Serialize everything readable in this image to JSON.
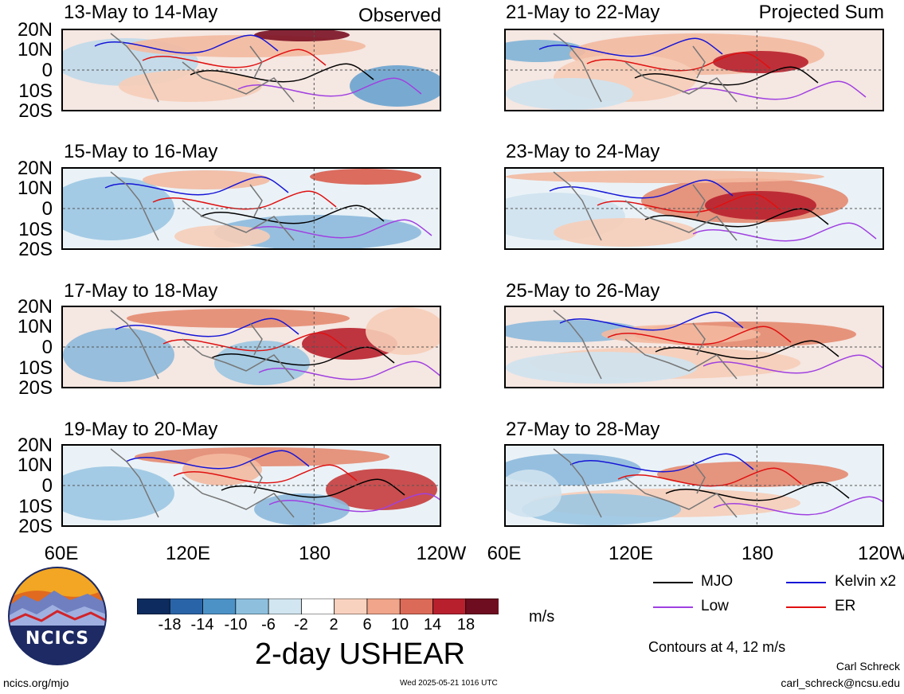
{
  "panels_left": [
    {
      "title": "13-May to 14-May",
      "tag": "Observed"
    },
    {
      "title": "15-May to 16-May",
      "tag": ""
    },
    {
      "title": "17-May to 18-May",
      "tag": ""
    },
    {
      "title": "19-May to 20-May",
      "tag": ""
    }
  ],
  "panels_right": [
    {
      "title": "21-May to 22-May",
      "tag": "Projected Sum"
    },
    {
      "title": "23-May to 24-May",
      "tag": ""
    },
    {
      "title": "25-May to 26-May",
      "tag": ""
    },
    {
      "title": "27-May to 28-May",
      "tag": ""
    }
  ],
  "lat_labels": [
    "20N",
    "10N",
    "0",
    "10S",
    "20S"
  ],
  "lon_labels": [
    "60E",
    "120E",
    "180",
    "120W"
  ],
  "colorbar": {
    "ticks": [
      "-18",
      "-14",
      "-10",
      "-6",
      "-2",
      "2",
      "6",
      "10",
      "14",
      "18"
    ],
    "colors": [
      "#0d2b5e",
      "#2a64a8",
      "#4c92c7",
      "#8ec0de",
      "#d2e6f1",
      "#ffffff",
      "#f9d2bf",
      "#f1a58a",
      "#dc6a58",
      "#b8202e",
      "#6e0d1f"
    ],
    "units": "m/s",
    "title": "2-day USHEAR"
  },
  "legend": {
    "items": [
      {
        "label": "MJO",
        "color": "#000000"
      },
      {
        "label": "Kelvin x2",
        "color": "#1515d6"
      },
      {
        "label": "Low",
        "color": "#a040e0"
      },
      {
        "label": "ER",
        "color": "#e01010"
      }
    ],
    "contours_note": "Contours at 4, 12 m/s"
  },
  "logo": {
    "text": "NCICS"
  },
  "footer": {
    "url": "ncics.org/mjo",
    "timestamp": "Wed 2025-05-21 1016 UTC",
    "author": "Carl Schreck",
    "email": "carl_schreck@ncsu.edu"
  }
}
